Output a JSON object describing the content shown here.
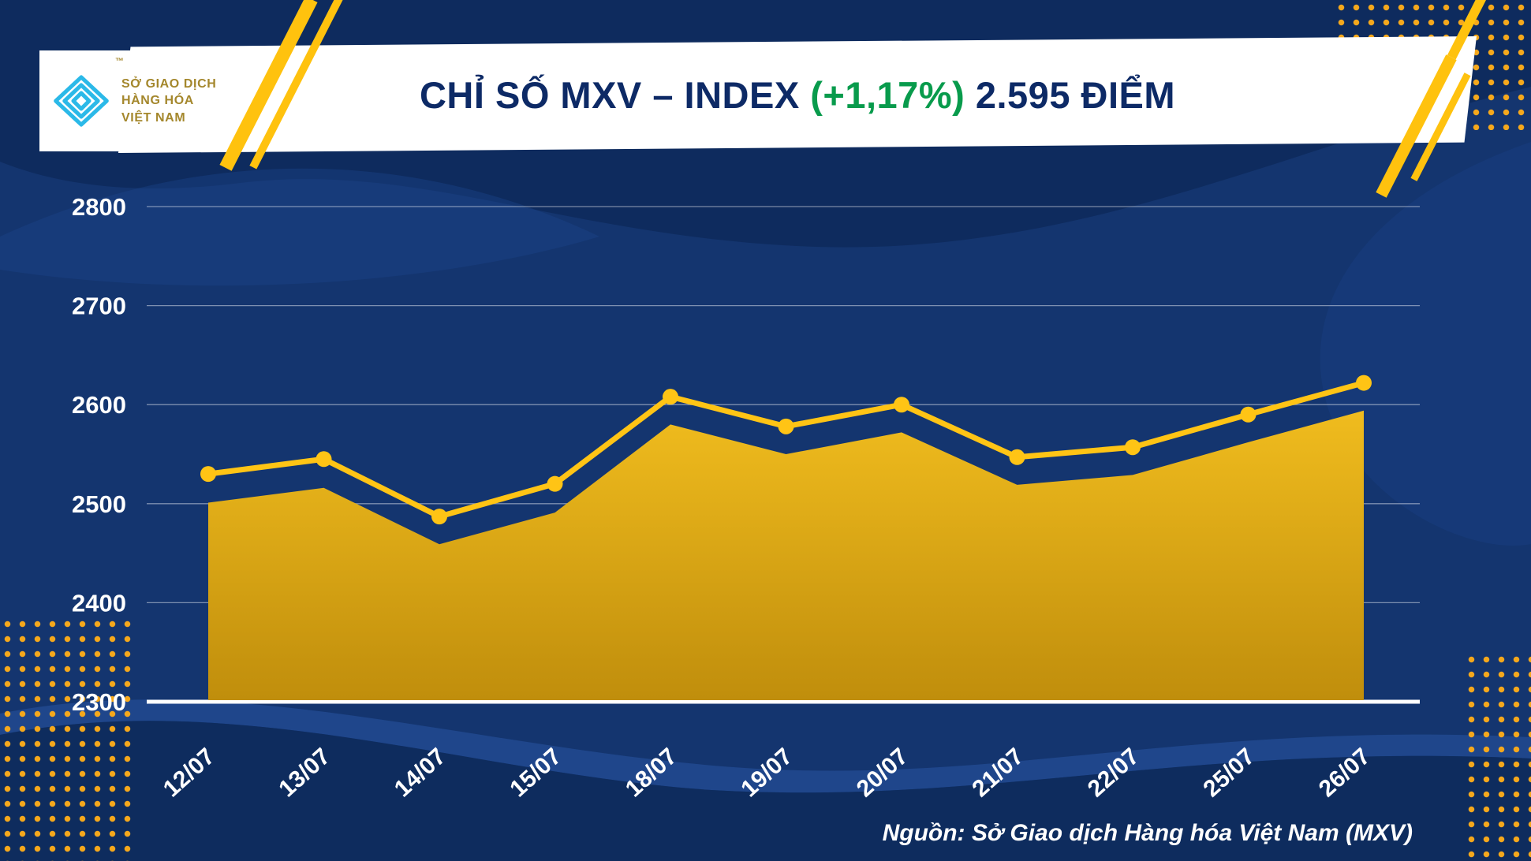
{
  "header": {
    "title_main": "CHỈ SỐ MXV – INDEX",
    "title_change": "(+1,17%)",
    "title_value": "2.595 ĐIỂM",
    "logo": {
      "line1": "SỞ GIAO DỊCH",
      "line2": "HÀNG HÓA",
      "line3": "VIỆT NAM",
      "tm": "™"
    }
  },
  "footer": {
    "source": "Nguồn: Sở Giao dịch Hàng hóa Việt Nam (MXV)"
  },
  "colors": {
    "background_navy": "#14356F",
    "wave_dark": "#0D2A5C",
    "wave_light": "#2A57A8",
    "banner_white": "#FFFFFF",
    "title_navy": "#0D2A66",
    "title_green": "#089B4C",
    "line_yellow": "#FFC415",
    "area_gold_top": "#F0BC1E",
    "area_gold_bottom": "#C08E0C",
    "dot_gold": "#F5A81C",
    "logo_cyan": "#2BB9E8",
    "logo_text_gold": "#A4872C",
    "axis_white": "#FFFFFF"
  },
  "chart_data": {
    "type": "area",
    "title": "CHỈ SỐ MXV – INDEX (+1,17%) 2.595 ĐIỂM",
    "categories": [
      "12/07",
      "13/07",
      "14/07",
      "15/07",
      "18/07",
      "19/07",
      "20/07",
      "21/07",
      "22/07",
      "25/07",
      "26/07"
    ],
    "series": [
      {
        "name": "mxv-index-line-markers",
        "values": [
          2530,
          2545,
          2487,
          2520,
          2608,
          2578,
          2600,
          2547,
          2557,
          2590,
          2622
        ]
      },
      {
        "name": "mxv-index-area-top",
        "values": [
          2501,
          2516,
          2459,
          2491,
          2580,
          2550,
          2572,
          2519,
          2529,
          2562,
          2594
        ]
      }
    ],
    "xlabel": "",
    "ylabel": "",
    "ylim": [
      2300,
      2800
    ],
    "yticks": [
      2300,
      2400,
      2500,
      2600,
      2700,
      2800
    ],
    "grid": true,
    "legend_position": "none"
  }
}
